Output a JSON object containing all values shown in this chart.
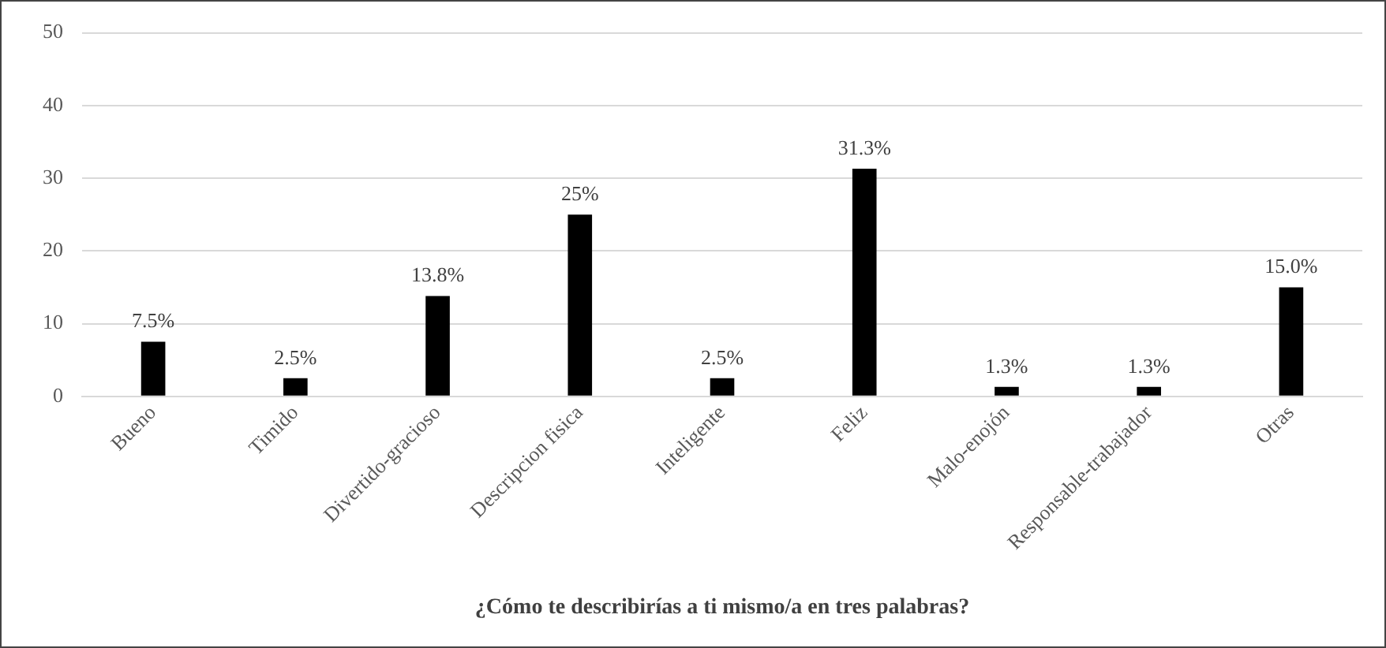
{
  "chart_data": {
    "type": "bar",
    "xlabel": "¿Cómo te describirías a ti mismo/a en tres palabras?",
    "categories": [
      "Bueno",
      "Timido",
      "Divertido-gracioso",
      "Descripcion fisica",
      "Inteligente",
      "Feliz",
      "Malo-enojón",
      "Responsable-trabajador",
      "Otras"
    ],
    "values": [
      7.5,
      2.5,
      13.8,
      25,
      2.5,
      31.3,
      1.3,
      1.3,
      15.0
    ],
    "value_labels": [
      "7.5%",
      "2.5%",
      "13.8%",
      "25%",
      "2.5%",
      "31.3%",
      "1.3%",
      "1.3%",
      "15.0%"
    ],
    "color": "#000000",
    "ylim": [
      0,
      50
    ],
    "yticks": [
      0,
      10,
      20,
      30,
      40,
      50
    ],
    "grid": "y",
    "legend": false
  }
}
